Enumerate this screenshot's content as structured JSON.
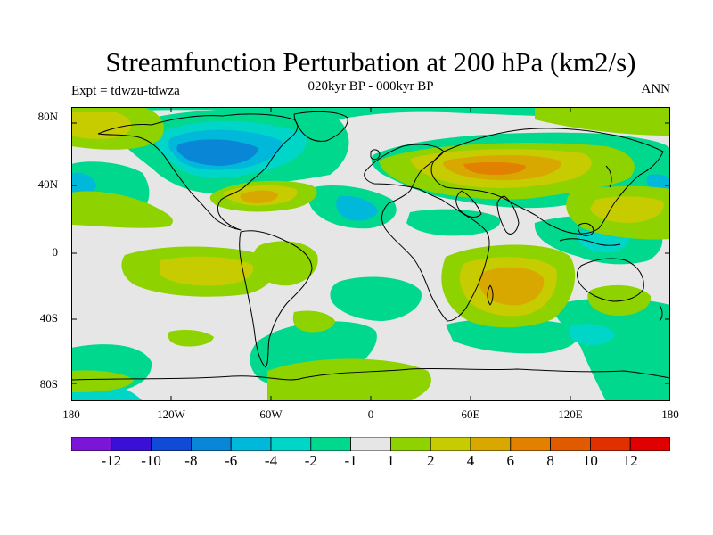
{
  "title": "Streamfunction Perturbation at 200 hPa (km2/s)",
  "subtitle": "020kyr BP - 000kyr BP",
  "left_label": "Expt = tdwzu-tdwza",
  "right_label": "ANN",
  "map": {
    "projection": "cylindrical equidistant",
    "lon_range": [
      -180,
      180
    ],
    "lat_range": [
      -90,
      90
    ],
    "lat_ticks": [
      "80N",
      "40N",
      "0",
      "40S",
      "80S"
    ],
    "lon_ticks": [
      "180",
      "120W",
      "60W",
      "0",
      "60E",
      "120E",
      "180"
    ],
    "coastlines": "black",
    "fill_type": "filled contours"
  },
  "colorbar": {
    "labels": [
      "-12",
      "-10",
      "-8",
      "-6",
      "-4",
      "-2",
      "-1",
      "1",
      "2",
      "4",
      "6",
      "8",
      "10",
      "12"
    ],
    "colors": [
      "#7b16d9",
      "#3b10d6",
      "#104ad6",
      "#0a86d6",
      "#00b8d9",
      "#00d6c8",
      "#00d98d",
      "#e6e6e6",
      "#8ed300",
      "#c6cc00",
      "#d9a800",
      "#e28000",
      "#e05a00",
      "#e03000",
      "#e00000"
    ]
  }
}
